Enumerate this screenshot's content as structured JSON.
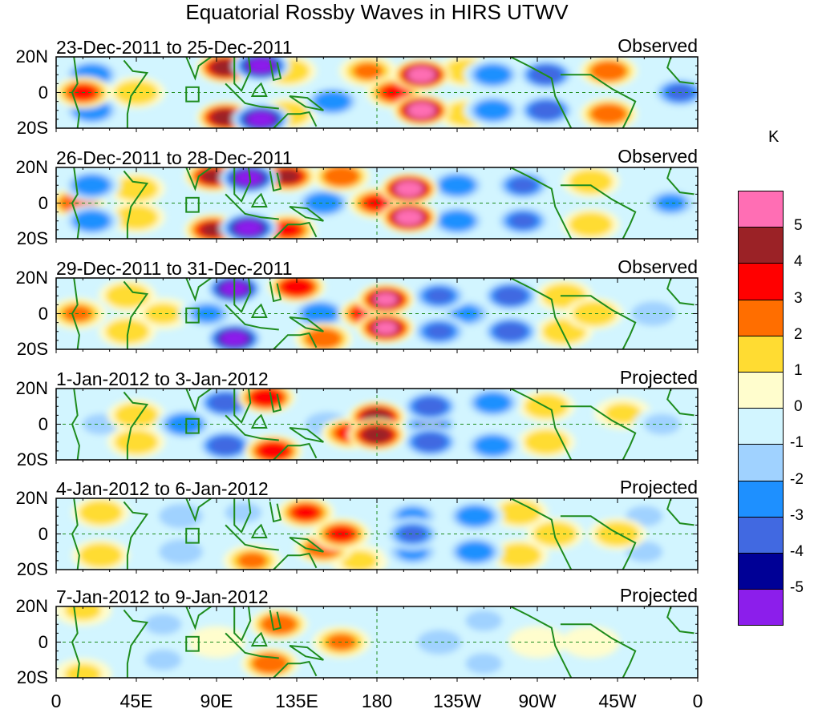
{
  "title": "Equatorial Rossby Waves in HIRS UTWV",
  "chart_data": {
    "type": "heatmap",
    "title": "Equatorial Rossby Waves in HIRS UTWV",
    "xlabel": "Longitude",
    "ylabel": "Latitude",
    "x_ticks": [
      "0",
      "45E",
      "90E",
      "135E",
      "180",
      "135W",
      "90W",
      "45W",
      "0"
    ],
    "x_range_deg_east": [
      0,
      360
    ],
    "y_ticks": [
      "20N",
      "0",
      "20S"
    ],
    "y_range_deg": [
      -20,
      20
    ],
    "colorbar": {
      "unit": "K",
      "levels": [
        "5",
        "4",
        "3",
        "2",
        "1",
        "0",
        "-1",
        "-2",
        "-3",
        "-4",
        "-5"
      ],
      "colors": [
        "#ff6eb4",
        "#9b2226",
        "#ff0000",
        "#ff6e00",
        "#ffdc32",
        "#fffdcd",
        "#d2f5ff",
        "#a0d2ff",
        "#1e90ff",
        "#4169e1",
        "#000096",
        "#8c1eeb"
      ]
    },
    "panels": [
      {
        "period": "23-Dec-2011 to 25-Dec-2011",
        "status": "Observed",
        "anomalies": [
          [
            95,
            14,
            4.5
          ],
          [
            95,
            -14,
            4.5
          ],
          [
            115,
            15,
            -5.5
          ],
          [
            115,
            -15,
            -5.5
          ],
          [
            155,
            -5,
            -2.5
          ],
          [
            205,
            10,
            5.5
          ],
          [
            205,
            -10,
            5.5
          ],
          [
            190,
            0,
            3
          ],
          [
            245,
            10,
            -2.5
          ],
          [
            245,
            -10,
            -2.5
          ],
          [
            275,
            10,
            -3.5
          ],
          [
            275,
            -10,
            -3.5
          ],
          [
            310,
            12,
            2.5
          ],
          [
            310,
            -12,
            2.5
          ],
          [
            350,
            0,
            -3
          ],
          [
            375,
            0,
            3
          ],
          [
            20,
            10,
            -2.5
          ],
          [
            20,
            -10,
            -2.5
          ],
          [
            45,
            0,
            1.5
          ],
          [
            230,
            12,
            1.5
          ],
          [
            230,
            -12,
            1.5
          ],
          [
            130,
            12,
            1.5
          ],
          [
            130,
            -12,
            1.5
          ],
          [
            175,
            12,
            2
          ]
        ]
      },
      {
        "period": "26-Dec-2011 to 28-Dec-2011",
        "status": "Observed",
        "anomalies": [
          [
            88,
            15,
            4
          ],
          [
            88,
            -15,
            4
          ],
          [
            108,
            14,
            -5.5
          ],
          [
            108,
            -14,
            -5.5
          ],
          [
            150,
            0,
            -2.5
          ],
          [
            198,
            8,
            5.5
          ],
          [
            198,
            -8,
            5.5
          ],
          [
            180,
            0,
            3
          ],
          [
            225,
            10,
            -2.5
          ],
          [
            225,
            -10,
            -2.5
          ],
          [
            262,
            10,
            -3
          ],
          [
            262,
            -10,
            -3
          ],
          [
            300,
            12,
            1.5
          ],
          [
            300,
            -12,
            1.5
          ],
          [
            345,
            0,
            -2
          ],
          [
            372,
            0,
            2.5
          ],
          [
            20,
            10,
            -2.5
          ],
          [
            20,
            -10,
            -2.5
          ],
          [
            45,
            8,
            1.5
          ],
          [
            45,
            -8,
            1.5
          ],
          [
            130,
            15,
            4
          ],
          [
            130,
            -15,
            3
          ],
          [
            160,
            15,
            2.5
          ]
        ]
      },
      {
        "period": "29-Dec-2011 to 31-Dec-2011",
        "status": "Observed",
        "anomalies": [
          [
            100,
            14,
            -5.5
          ],
          [
            100,
            -14,
            -5.5
          ],
          [
            85,
            0,
            -2
          ],
          [
            135,
            15,
            3.5
          ],
          [
            148,
            0,
            -2.5
          ],
          [
            150,
            -14,
            2.5
          ],
          [
            185,
            8,
            5
          ],
          [
            185,
            -8,
            5
          ],
          [
            175,
            0,
            3.5
          ],
          [
            215,
            10,
            -3
          ],
          [
            215,
            -10,
            -3
          ],
          [
            255,
            10,
            -3.5
          ],
          [
            255,
            -10,
            -3.5
          ],
          [
            230,
            0,
            -2
          ],
          [
            285,
            10,
            1.5
          ],
          [
            285,
            -10,
            1.5
          ],
          [
            302,
            0,
            1.5
          ],
          [
            335,
            0,
            -1.5
          ],
          [
            372,
            0,
            2
          ],
          [
            40,
            10,
            1.5
          ],
          [
            40,
            -10,
            1.5
          ],
          [
            15,
            0,
            -1.5
          ],
          [
            60,
            0,
            1
          ]
        ]
      },
      {
        "period": "1-Jan-2012 to 3-Jan-2012",
        "status": "Projected",
        "anomalies": [
          [
            95,
            12,
            -3.5
          ],
          [
            95,
            -12,
            -3.5
          ],
          [
            72,
            0,
            -2.5
          ],
          [
            118,
            15,
            3.5
          ],
          [
            122,
            -15,
            3.5
          ],
          [
            152,
            0,
            -1.5
          ],
          [
            180,
            4,
            4.5
          ],
          [
            180,
            -6,
            4.5
          ],
          [
            165,
            -5,
            3
          ],
          [
            210,
            10,
            -3.5
          ],
          [
            210,
            -10,
            -3.5
          ],
          [
            210,
            0,
            -3
          ],
          [
            245,
            12,
            -2.5
          ],
          [
            245,
            -12,
            -2.5
          ],
          [
            275,
            10,
            1.5
          ],
          [
            275,
            -10,
            1.5
          ],
          [
            318,
            6,
            1
          ],
          [
            340,
            0,
            -1
          ],
          [
            45,
            5,
            1.5
          ],
          [
            45,
            -10,
            1.5
          ],
          [
            25,
            0,
            -1
          ]
        ]
      },
      {
        "period": "4-Jan-2012 to 6-Jan-2012",
        "status": "Projected",
        "anomalies": [
          [
            70,
            10,
            -1.5
          ],
          [
            70,
            -10,
            -1.5
          ],
          [
            105,
            12,
            -1
          ],
          [
            140,
            12,
            3
          ],
          [
            160,
            0,
            3
          ],
          [
            150,
            -8,
            2.5
          ],
          [
            200,
            0,
            -3
          ],
          [
            200,
            10,
            -2
          ],
          [
            200,
            -10,
            -2
          ],
          [
            235,
            10,
            -2.5
          ],
          [
            235,
            -10,
            -2.5
          ],
          [
            260,
            12,
            1.5
          ],
          [
            260,
            -12,
            1.5
          ],
          [
            280,
            0,
            1.5
          ],
          [
            315,
            0,
            1.5
          ],
          [
            330,
            10,
            -1
          ],
          [
            330,
            -10,
            -1
          ],
          [
            25,
            12,
            1.5
          ],
          [
            25,
            -12,
            1.5
          ],
          [
            110,
            -15,
            2
          ],
          [
            170,
            -15,
            1
          ]
        ]
      },
      {
        "period": "7-Jan-2012 to 9-Jan-2012",
        "status": "Projected",
        "anomalies": [
          [
            125,
            10,
            2.5
          ],
          [
            120,
            -12,
            2.5
          ],
          [
            160,
            0,
            2
          ],
          [
            60,
            10,
            -1
          ],
          [
            60,
            -10,
            -1
          ],
          [
            90,
            0,
            0.5
          ],
          [
            215,
            0,
            -1.2
          ],
          [
            240,
            12,
            -1
          ],
          [
            240,
            -12,
            -1
          ],
          [
            270,
            0,
            0.8
          ],
          [
            300,
            0,
            0.8
          ],
          [
            340,
            0,
            -0.8
          ],
          [
            15,
            18,
            1
          ],
          [
            15,
            -18,
            1
          ]
        ]
      }
    ]
  }
}
